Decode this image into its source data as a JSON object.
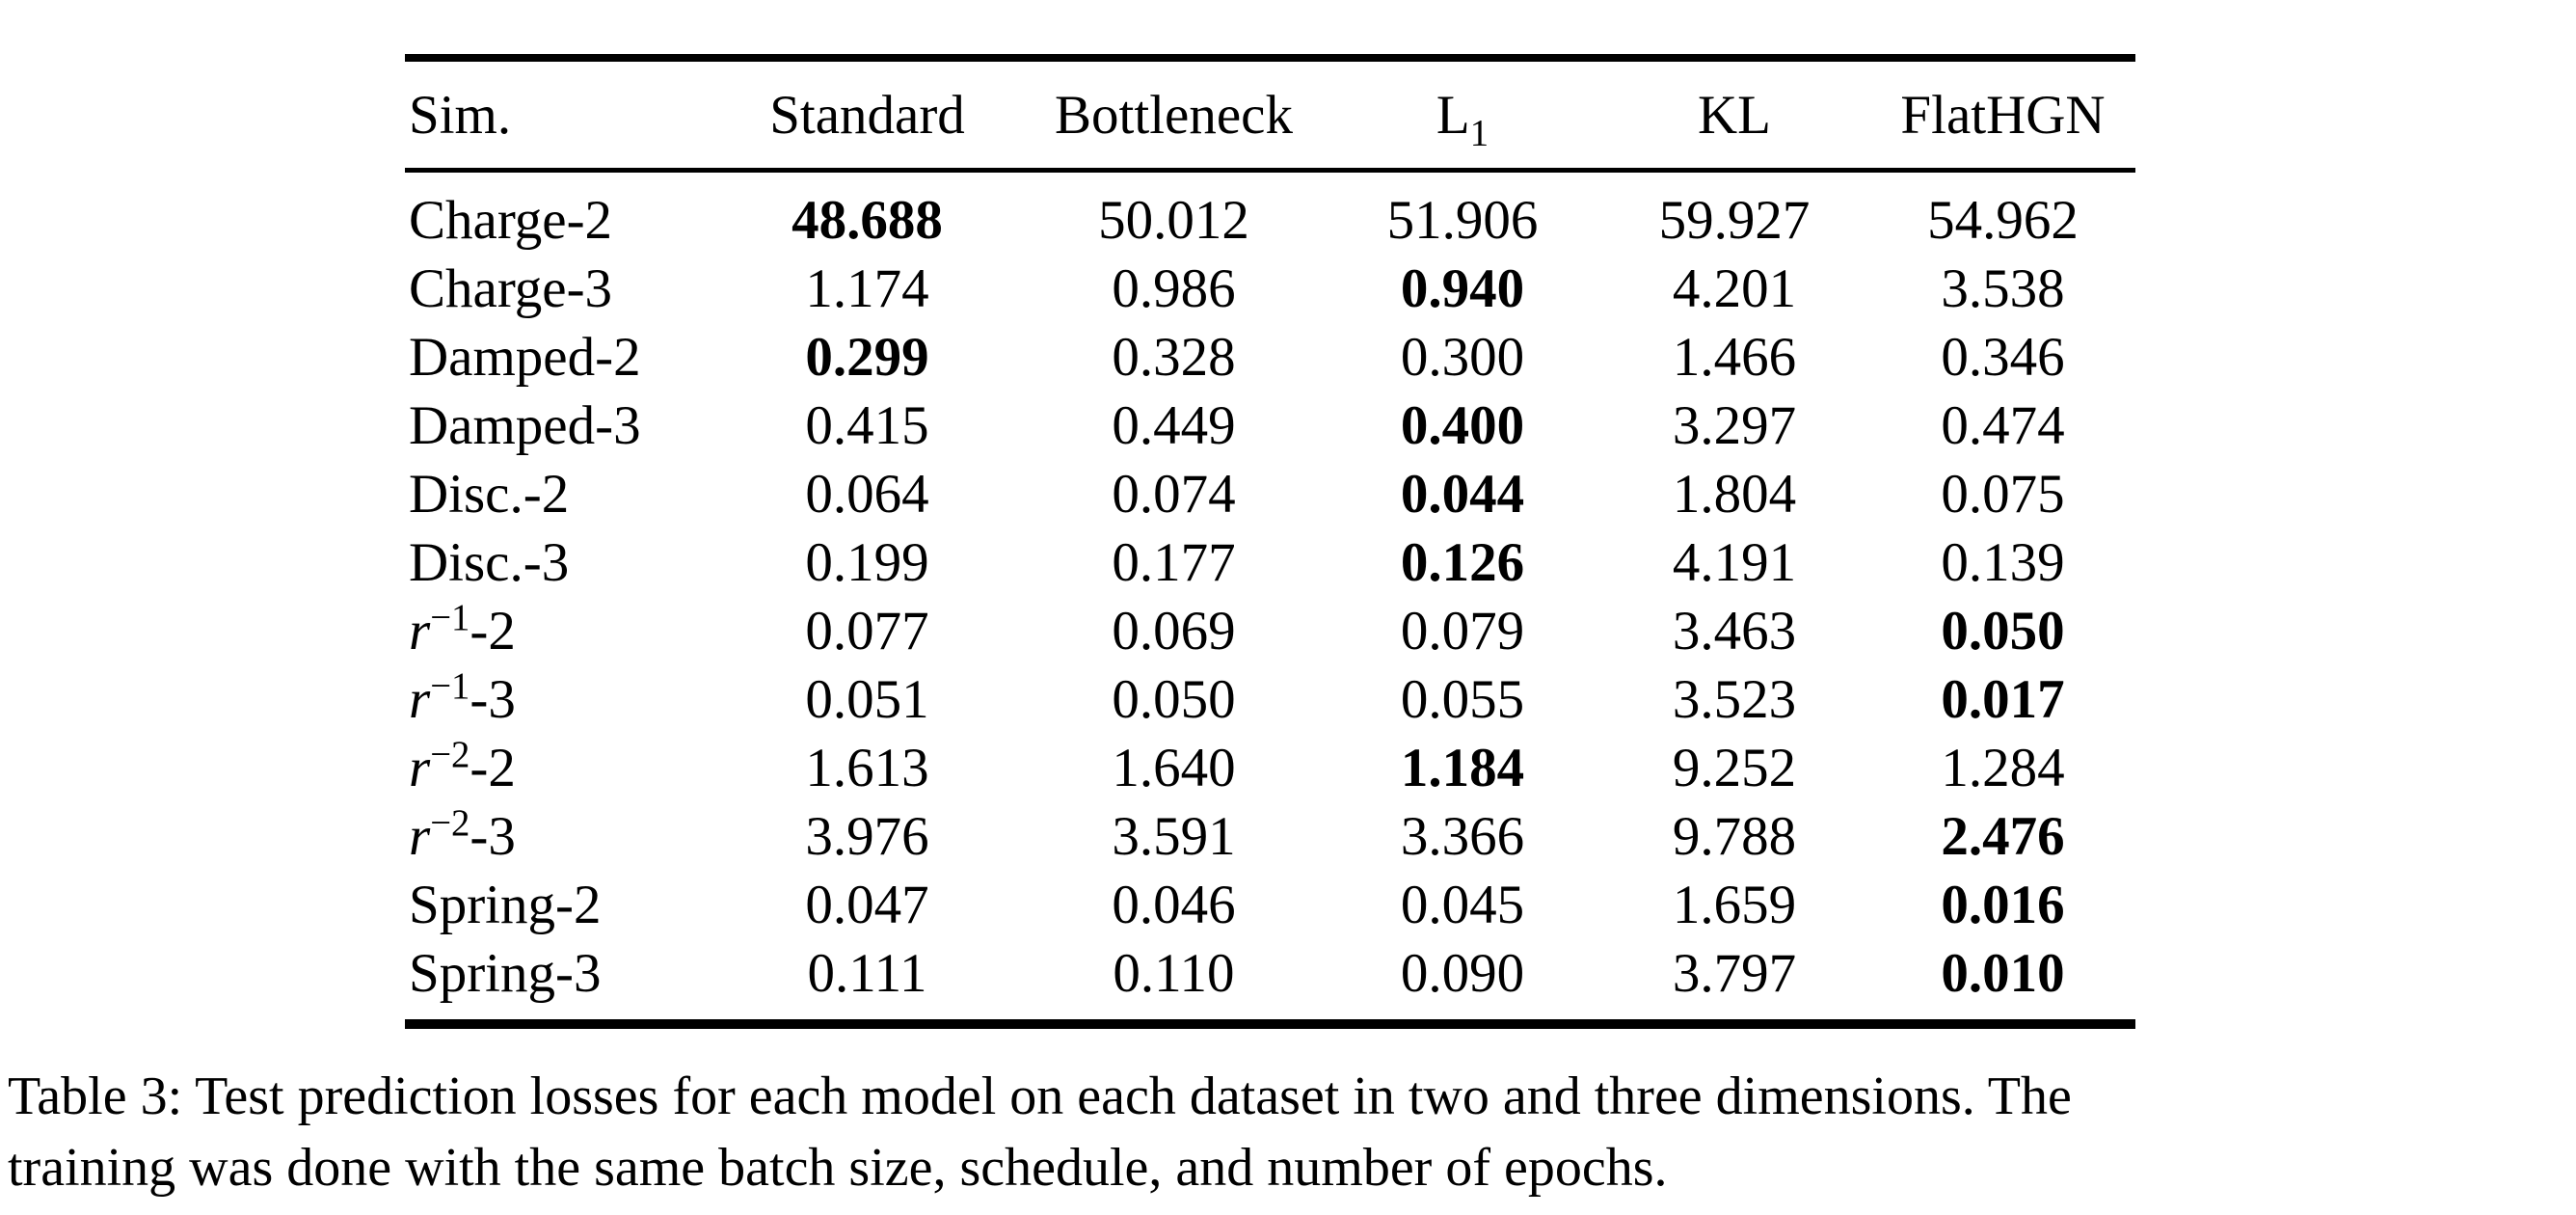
{
  "colors": {
    "text": "#000000",
    "background": "#ffffff",
    "rule": "#000000"
  },
  "table": {
    "columns": [
      {
        "text": "Sim.",
        "sub": ""
      },
      {
        "text": "Standard",
        "sub": ""
      },
      {
        "text": "Bottleneck",
        "sub": ""
      },
      {
        "text": "L",
        "sub": "1"
      },
      {
        "text": "KL",
        "sub": ""
      },
      {
        "text": "FlatHGN",
        "sub": ""
      }
    ],
    "rows": [
      {
        "sim": {
          "base": "Charge-2",
          "sup": "",
          "suffix": "",
          "italic": false
        },
        "values": [
          {
            "v": "48.688",
            "bold": true
          },
          {
            "v": "50.012",
            "bold": false
          },
          {
            "v": "51.906",
            "bold": false
          },
          {
            "v": "59.927",
            "bold": false
          },
          {
            "v": "54.962",
            "bold": false
          }
        ]
      },
      {
        "sim": {
          "base": "Charge-3",
          "sup": "",
          "suffix": "",
          "italic": false
        },
        "values": [
          {
            "v": "1.174",
            "bold": false
          },
          {
            "v": "0.986",
            "bold": false
          },
          {
            "v": "0.940",
            "bold": true
          },
          {
            "v": "4.201",
            "bold": false
          },
          {
            "v": "3.538",
            "bold": false
          }
        ]
      },
      {
        "sim": {
          "base": "Damped-2",
          "sup": "",
          "suffix": "",
          "italic": false
        },
        "values": [
          {
            "v": "0.299",
            "bold": true
          },
          {
            "v": "0.328",
            "bold": false
          },
          {
            "v": "0.300",
            "bold": false
          },
          {
            "v": "1.466",
            "bold": false
          },
          {
            "v": "0.346",
            "bold": false
          }
        ]
      },
      {
        "sim": {
          "base": "Damped-3",
          "sup": "",
          "suffix": "",
          "italic": false
        },
        "values": [
          {
            "v": "0.415",
            "bold": false
          },
          {
            "v": "0.449",
            "bold": false
          },
          {
            "v": "0.400",
            "bold": true
          },
          {
            "v": "3.297",
            "bold": false
          },
          {
            "v": "0.474",
            "bold": false
          }
        ]
      },
      {
        "sim": {
          "base": "Disc.-2",
          "sup": "",
          "suffix": "",
          "italic": false
        },
        "values": [
          {
            "v": "0.064",
            "bold": false
          },
          {
            "v": "0.074",
            "bold": false
          },
          {
            "v": "0.044",
            "bold": true
          },
          {
            "v": "1.804",
            "bold": false
          },
          {
            "v": "0.075",
            "bold": false
          }
        ]
      },
      {
        "sim": {
          "base": "Disc.-3",
          "sup": "",
          "suffix": "",
          "italic": false
        },
        "values": [
          {
            "v": "0.199",
            "bold": false
          },
          {
            "v": "0.177",
            "bold": false
          },
          {
            "v": "0.126",
            "bold": true
          },
          {
            "v": "4.191",
            "bold": false
          },
          {
            "v": "0.139",
            "bold": false
          }
        ]
      },
      {
        "sim": {
          "base": "r",
          "sup": "−1",
          "suffix": "-2",
          "italic": true
        },
        "values": [
          {
            "v": "0.077",
            "bold": false
          },
          {
            "v": "0.069",
            "bold": false
          },
          {
            "v": "0.079",
            "bold": false
          },
          {
            "v": "3.463",
            "bold": false
          },
          {
            "v": "0.050",
            "bold": true
          }
        ]
      },
      {
        "sim": {
          "base": "r",
          "sup": "−1",
          "suffix": "-3",
          "italic": true
        },
        "values": [
          {
            "v": "0.051",
            "bold": false
          },
          {
            "v": "0.050",
            "bold": false
          },
          {
            "v": "0.055",
            "bold": false
          },
          {
            "v": "3.523",
            "bold": false
          },
          {
            "v": "0.017",
            "bold": true
          }
        ]
      },
      {
        "sim": {
          "base": "r",
          "sup": "−2",
          "suffix": "-2",
          "italic": true
        },
        "values": [
          {
            "v": "1.613",
            "bold": false
          },
          {
            "v": "1.640",
            "bold": false
          },
          {
            "v": "1.184",
            "bold": true
          },
          {
            "v": "9.252",
            "bold": false
          },
          {
            "v": "1.284",
            "bold": false
          }
        ]
      },
      {
        "sim": {
          "base": "r",
          "sup": "−2",
          "suffix": "-3",
          "italic": true
        },
        "values": [
          {
            "v": "3.976",
            "bold": false
          },
          {
            "v": "3.591",
            "bold": false
          },
          {
            "v": "3.366",
            "bold": false
          },
          {
            "v": "9.788",
            "bold": false
          },
          {
            "v": "2.476",
            "bold": true
          }
        ]
      },
      {
        "sim": {
          "base": "Spring-2",
          "sup": "",
          "suffix": "",
          "italic": false
        },
        "values": [
          {
            "v": "0.047",
            "bold": false
          },
          {
            "v": "0.046",
            "bold": false
          },
          {
            "v": "0.045",
            "bold": false
          },
          {
            "v": "1.659",
            "bold": false
          },
          {
            "v": "0.016",
            "bold": true
          }
        ]
      },
      {
        "sim": {
          "base": "Spring-3",
          "sup": "",
          "suffix": "",
          "italic": false
        },
        "values": [
          {
            "v": "0.111",
            "bold": false
          },
          {
            "v": "0.110",
            "bold": false
          },
          {
            "v": "0.090",
            "bold": false
          },
          {
            "v": "3.797",
            "bold": false
          },
          {
            "v": "0.010",
            "bold": true
          }
        ]
      }
    ]
  },
  "caption": {
    "line1": "Table 3: Test prediction losses for each model on each dataset in two and three dimensions. The",
    "line2": "training was done with the same batch size, schedule, and number of epochs."
  }
}
